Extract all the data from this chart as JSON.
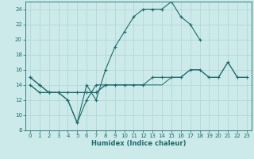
{
  "xlabel": "Humidex (Indice chaleur)",
  "background_color": "#cceaea",
  "grid_color": "#afd4d4",
  "line_color": "#1e6b6b",
  "xlim": [
    0,
    23
  ],
  "ylim": [
    8,
    25
  ],
  "yticks": [
    8,
    10,
    12,
    14,
    16,
    18,
    20,
    22,
    24
  ],
  "xticks": [
    0,
    1,
    2,
    3,
    4,
    5,
    6,
    7,
    8,
    9,
    10,
    11,
    12,
    13,
    14,
    15,
    16,
    17,
    18,
    19,
    20,
    21,
    22,
    23
  ],
  "line1_x": [
    0,
    1,
    2,
    3,
    4,
    5,
    6,
    7,
    8,
    9,
    10,
    11,
    12,
    13,
    14,
    15,
    16,
    17,
    18
  ],
  "line1_y": [
    15,
    14,
    13,
    13,
    12,
    9,
    14,
    12,
    16,
    19,
    21,
    23,
    24,
    24,
    24,
    25,
    23,
    22,
    20
  ],
  "line2_x": [
    0,
    1,
    2,
    3,
    4,
    5,
    6,
    7,
    8
  ],
  "line2_y": [
    15,
    14,
    13,
    13,
    12,
    9,
    12,
    14,
    14
  ],
  "line3_x": [
    0,
    1,
    2,
    3,
    4,
    5,
    6,
    7,
    8,
    9,
    10,
    11,
    12,
    13,
    14,
    15,
    16,
    17,
    18,
    19,
    20,
    21,
    22,
    23
  ],
  "line3_y": [
    14,
    13,
    13,
    13,
    13,
    13,
    13,
    13,
    14,
    14,
    14,
    14,
    14,
    15,
    15,
    15,
    15,
    16,
    16,
    15,
    15,
    17,
    15,
    15
  ],
  "line4_x": [
    0,
    1,
    2,
    3,
    4,
    5,
    6,
    7,
    8,
    9,
    10,
    11,
    12,
    13,
    14,
    15,
    16,
    17,
    18,
    19,
    20,
    21,
    22,
    23
  ],
  "line4_y": [
    14,
    13,
    13,
    13,
    13,
    13,
    13,
    13,
    14,
    14,
    14,
    14,
    14,
    14,
    14,
    15,
    15,
    16,
    16,
    15,
    15,
    17,
    15,
    15
  ]
}
